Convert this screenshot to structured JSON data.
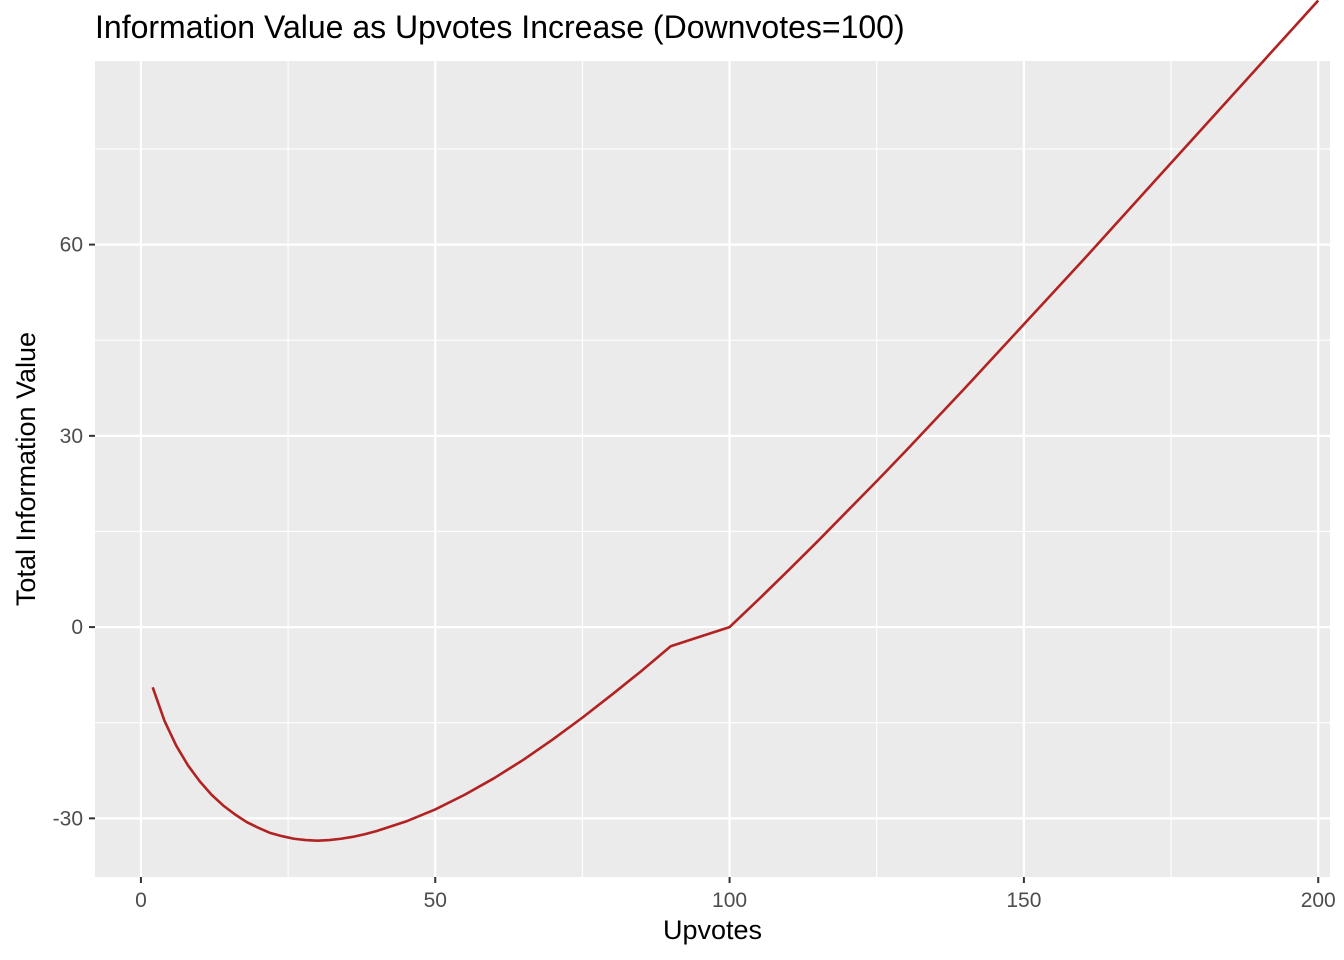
{
  "chart_data": {
    "type": "line",
    "title": "Information Value as Upvotes Increase (Downvotes=100)",
    "xlabel": "Upvotes",
    "ylabel": "Total Information Value",
    "xlim": [
      -7.8,
      202
    ],
    "ylim": [
      -39.2,
      88.8
    ],
    "x_ticks": [
      0,
      50,
      100,
      150,
      200
    ],
    "x_tick_labels": [
      "0",
      "50",
      "100",
      "150",
      "200"
    ],
    "y_ticks": [
      -30,
      0,
      30,
      60
    ],
    "y_tick_labels": [
      "-30",
      "0",
      "30",
      "60"
    ],
    "grid": true,
    "legend": "none",
    "series": [
      {
        "color": "#b22222",
        "x": [
          2,
          4,
          6,
          8,
          10,
          12,
          14,
          16,
          18,
          20,
          22,
          24,
          26,
          28,
          30,
          32,
          34,
          36,
          38,
          40,
          45,
          50,
          55,
          60,
          65,
          70,
          75,
          80,
          85,
          90,
          95,
          100,
          105,
          110,
          115,
          120,
          125,
          130,
          135,
          140,
          145,
          150,
          155,
          160,
          165,
          170,
          175,
          180,
          185,
          190,
          195,
          200
        ],
        "y": [
          -9.44,
          -14.7,
          -18.6,
          -21.7,
          -24.2,
          -26.3,
          -28.0,
          -29.4,
          -30.6,
          -31.5,
          -32.3,
          -32.8,
          -33.2,
          -33.4,
          -33.5,
          -33.4,
          -33.2,
          -32.9,
          -32.5,
          -32.0,
          -30.5,
          -28.6,
          -26.3,
          -23.7,
          -20.8,
          -17.6,
          -14.2,
          -10.6,
          -6.9,
          -3.0,
          1.0,
          0,
          4.4,
          8.9,
          13.5,
          18.2,
          22.9,
          27.7,
          32.6,
          37.5,
          42.5,
          47.5,
          52.5,
          57.5,
          62.6,
          67.7,
          72.8,
          77.9,
          83.0,
          88.1,
          93.2,
          98.3
        ]
      }
    ]
  }
}
